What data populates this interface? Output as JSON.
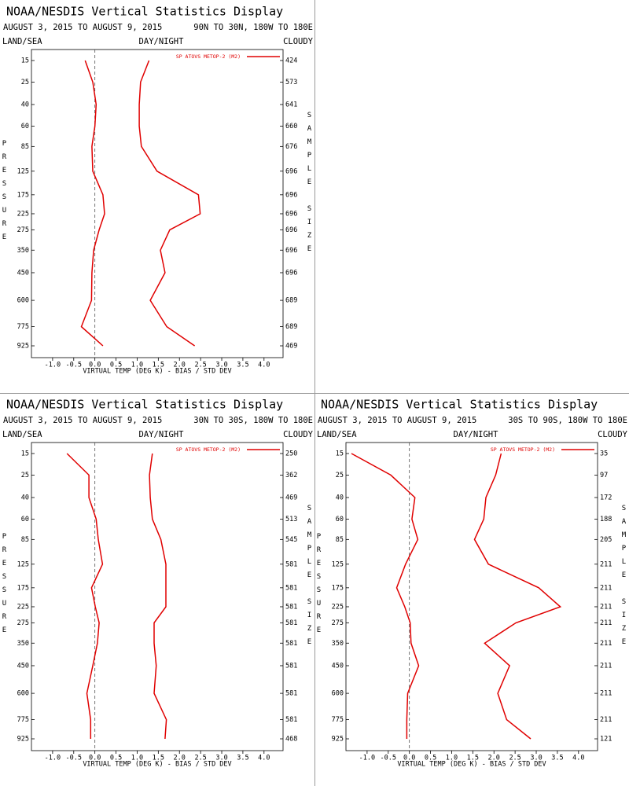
{
  "chart_data": [
    {
      "type": "line",
      "title": "NOAA/NESDIS Vertical Statistics Display",
      "subtitle": "AUGUST 3, 2015 TO AUGUST 9, 2015",
      "region": "90N TO 30N, 180W TO 180E",
      "land_sea": "LAND/SEA",
      "day_night": "DAY/NIGHT",
      "cloudy": "CLOUDY",
      "xlabel": "VIRTUAL TEMP (DEG K) - BIAS / STD DEV",
      "ylabel": "PRESSURE",
      "y2label": "SAMPLE SIZE",
      "y": [
        15,
        25,
        40,
        60,
        85,
        125,
        175,
        225,
        275,
        350,
        450,
        600,
        775,
        925
      ],
      "sample_size": [
        424,
        573,
        641,
        660,
        676,
        696,
        696,
        696,
        696,
        696,
        696,
        689,
        689,
        469
      ],
      "xlim": [
        -1.5,
        4.45
      ],
      "xticks": [
        {
          "value": -1.0,
          "label": "-1.0"
        },
        -0.5,
        {
          "value": 0.0,
          "label": "0.0"
        },
        0.5,
        {
          "value": 1.0,
          "label": "1.0"
        },
        1.5,
        {
          "value": 2.0,
          "label": "2.0"
        },
        2.5,
        {
          "value": 3.0,
          "label": "3.0"
        },
        3.5,
        {
          "value": 4.0,
          "label": "4.0"
        }
      ],
      "series": [
        {
          "name": "SP ATOVS METOP-2 (M2)",
          "color": "#e00000",
          "values": [
            -0.23,
            -0.05,
            0.03,
            0.0,
            -0.07,
            -0.05,
            0.19,
            0.23,
            0.1,
            -0.03,
            -0.07,
            -0.08,
            -0.32,
            0.19
          ],
          "std_dev": [
            1.28,
            1.08,
            1.05,
            1.05,
            1.1,
            1.47,
            2.45,
            2.49,
            1.77,
            1.55,
            1.66,
            1.31,
            1.7,
            2.36
          ]
        }
      ]
    },
    {
      "type": "line",
      "title": "NOAA/NESDIS Vertical Statistics Display",
      "subtitle": "AUGUST 3, 2015 TO AUGUST 9, 2015",
      "region": "30N TO 30S, 180W TO 180E",
      "land_sea": "LAND/SEA",
      "day_night": "DAY/NIGHT",
      "cloudy": "CLOUDY",
      "xlabel": "VIRTUAL TEMP (DEG K) - BIAS / STD DEV",
      "ylabel": "PRESSURE",
      "y2label": "SAMPLE SIZE",
      "y": [
        15,
        25,
        40,
        60,
        85,
        125,
        175,
        225,
        275,
        350,
        450,
        600,
        775,
        925
      ],
      "sample_size": [
        250,
        362,
        469,
        513,
        545,
        581,
        581,
        581,
        581,
        581,
        581,
        581,
        581,
        468
      ],
      "xlim": [
        -1.5,
        4.45
      ],
      "xticks": [
        {
          "value": -1.0,
          "label": "-1.0"
        },
        -0.5,
        {
          "value": 0.0,
          "label": "0.0"
        },
        0.5,
        {
          "value": 1.0,
          "label": "1.0"
        },
        1.5,
        {
          "value": 2.0,
          "label": "2.0"
        },
        2.5,
        {
          "value": 3.0,
          "label": "3.0"
        },
        3.5,
        {
          "value": 4.0,
          "label": "4.0"
        }
      ],
      "series": [
        {
          "name": "SP ATOVS METOP-2 (M2)",
          "color": "#e00000",
          "values": [
            -0.66,
            -0.14,
            -0.14,
            0.03,
            0.08,
            0.18,
            -0.08,
            0.01,
            0.1,
            0.06,
            -0.05,
            -0.19,
            -0.1,
            -0.1
          ],
          "std_dev": [
            1.36,
            1.29,
            1.31,
            1.36,
            1.56,
            1.68,
            1.68,
            1.68,
            1.4,
            1.4,
            1.45,
            1.4,
            1.69,
            1.66
          ]
        }
      ]
    },
    {
      "type": "line",
      "title": "NOAA/NESDIS Vertical Statistics Display",
      "subtitle": "AUGUST 3, 2015 TO AUGUST 9, 2015",
      "region": "30S TO 90S, 180W TO 180E",
      "land_sea": "LAND/SEA",
      "day_night": "DAY/NIGHT",
      "cloudy": "CLOUDY",
      "xlabel": "VIRTUAL TEMP (DEG K) - BIAS / STD DEV",
      "ylabel": "PRESSURE",
      "y2label": "SAMPLE SIZE",
      "y": [
        15,
        25,
        40,
        60,
        85,
        125,
        175,
        225,
        275,
        350,
        450,
        600,
        775,
        925
      ],
      "sample_size": [
        35,
        97,
        172,
        188,
        205,
        211,
        211,
        211,
        211,
        211,
        211,
        211,
        211,
        121
      ],
      "xlim": [
        -1.5,
        4.45
      ],
      "xticks": [
        {
          "value": -1.0,
          "label": "-1.0"
        },
        -0.5,
        {
          "value": 0.0,
          "label": "0.0"
        },
        0.5,
        {
          "value": 1.0,
          "label": "1.0"
        },
        1.5,
        {
          "value": 2.0,
          "label": "2.0"
        },
        2.5,
        {
          "value": 3.0,
          "label": "3.0"
        },
        3.5,
        {
          "value": 4.0,
          "label": "4.0"
        }
      ],
      "series": [
        {
          "name": "SP ATOVS METOP-2 (M2)",
          "color": "#e00000",
          "values": [
            -1.37,
            -0.44,
            0.13,
            0.06,
            0.2,
            -0.09,
            -0.3,
            -0.11,
            0.02,
            0.04,
            0.22,
            -0.04,
            -0.06,
            -0.06
          ],
          "std_dev": [
            2.17,
            2.04,
            1.81,
            1.76,
            1.54,
            1.87,
            3.06,
            3.57,
            2.52,
            1.78,
            2.37,
            2.09,
            2.3,
            2.87
          ]
        }
      ]
    }
  ]
}
